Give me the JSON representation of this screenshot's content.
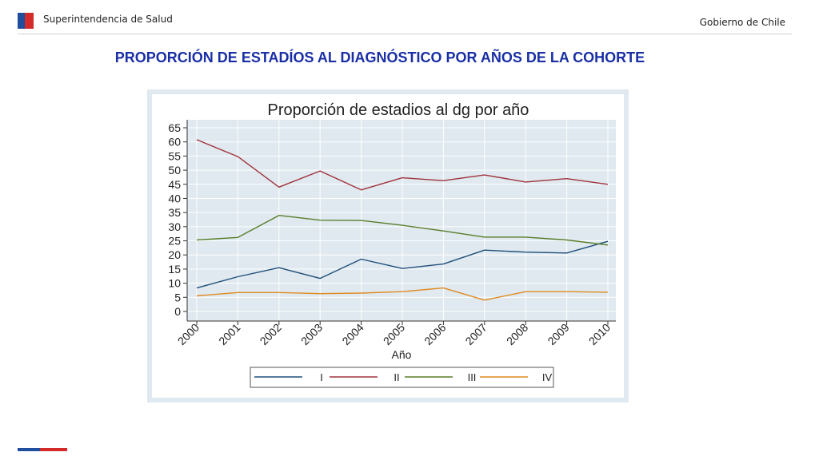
{
  "header": {
    "org": "Superintendencia de Salud",
    "gov": "Gobierno de Chile"
  },
  "slide_title": "PROPORCIÓN DE ESTADÍOS AL DIAGNÓSTICO POR AÑOS DE LA COHORTE",
  "colors": {
    "flag_blue": "#1f4e9c",
    "flag_red": "#d42a2a",
    "title": "#1a2fa6",
    "plot_bg": "#dfe9ef",
    "panel_bg": "#ffffff"
  },
  "chart_data": {
    "type": "line",
    "title": "Proporción de estadios al dg por año",
    "xlabel": "Año",
    "ylabel": "",
    "categories": [
      "2000",
      "2001",
      "2002",
      "2003",
      "2004",
      "2005",
      "2006",
      "2007",
      "2008",
      "2009",
      "2010"
    ],
    "ylim": [
      0,
      65
    ],
    "yticks": [
      0,
      5,
      10,
      15,
      20,
      25,
      30,
      35,
      40,
      45,
      50,
      55,
      60,
      65
    ],
    "grid": true,
    "legend_position": "bottom",
    "series": [
      {
        "name": "I",
        "color": "#1f4e79",
        "values": [
          8.3,
          12.3,
          15.5,
          11.7,
          18.5,
          15.2,
          16.8,
          21.7,
          21.0,
          20.7,
          24.8
        ]
      },
      {
        "name": "II",
        "color": "#a0323c",
        "values": [
          60.8,
          54.8,
          44.0,
          49.7,
          43.0,
          47.3,
          46.3,
          48.3,
          45.8,
          47.0,
          45.0
        ]
      },
      {
        "name": "III",
        "color": "#5a7d2a",
        "values": [
          25.3,
          26.2,
          34.0,
          32.3,
          32.2,
          30.5,
          28.5,
          26.3,
          26.3,
          25.3,
          23.5
        ]
      },
      {
        "name": "IV",
        "color": "#e08a1e",
        "values": [
          5.5,
          6.7,
          6.7,
          6.3,
          6.5,
          7.0,
          8.3,
          4.0,
          7.0,
          7.0,
          6.8
        ]
      }
    ]
  }
}
